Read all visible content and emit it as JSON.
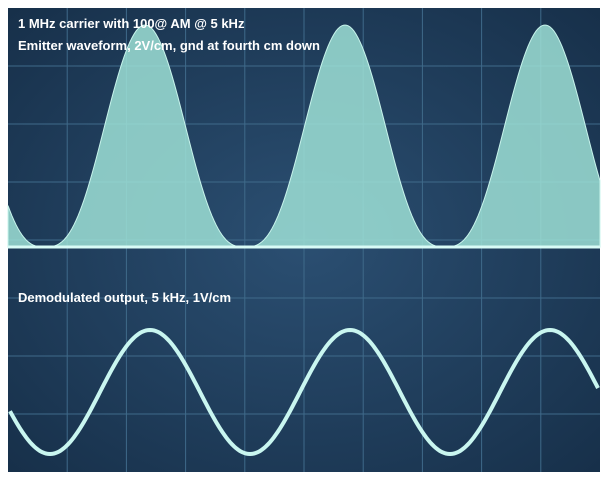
{
  "labels": {
    "line1": "1 MHz carrier with 100@ AM @ 5 kHz",
    "line2": "Emitter waveform, 2V/cm, gnd at fourth cm down",
    "line3": "Demodulated output, 5 kHz, 1V/cm"
  }
}
